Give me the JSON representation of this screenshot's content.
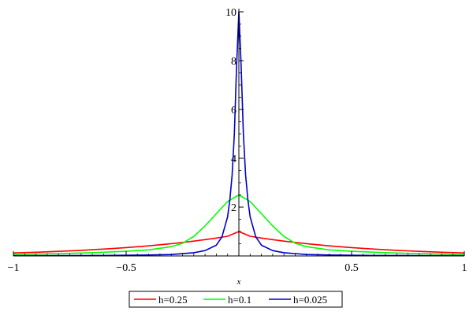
{
  "chart_data": {
    "type": "line",
    "xlabel": "x",
    "ylabel": "",
    "xlim": [
      -1,
      1
    ],
    "ylim": [
      0,
      10
    ],
    "grid": false,
    "legend_position": "bottom",
    "x_ticks": [
      -1,
      -0.5,
      0,
      0.5,
      1
    ],
    "x_tick_labels": [
      "−1",
      "−0.5",
      "",
      "0.5",
      "1"
    ],
    "y_ticks": [
      2,
      4,
      6,
      8,
      10
    ],
    "y_tick_labels": [
      "2",
      "4",
      "6",
      "8",
      "10"
    ],
    "series": [
      {
        "name": "h=0.25",
        "color": "#ff0000",
        "x": [
          -1,
          -0.9,
          -0.8,
          -0.7,
          -0.6,
          -0.5,
          -0.4,
          -0.3,
          -0.25,
          -0.2,
          -0.15,
          -0.1,
          -0.05,
          0,
          0.05,
          0.1,
          0.15,
          0.2,
          0.25,
          0.3,
          0.4,
          0.5,
          0.6,
          0.7,
          0.8,
          0.9,
          1
        ],
        "y": [
          0.125,
          0.152,
          0.186,
          0.229,
          0.281,
          0.34,
          0.413,
          0.503,
          0.553,
          0.607,
          0.667,
          0.733,
          0.806,
          1.0,
          0.806,
          0.733,
          0.667,
          0.607,
          0.553,
          0.503,
          0.413,
          0.34,
          0.281,
          0.229,
          0.186,
          0.152,
          0.125
        ]
      },
      {
        "name": "h=0.1",
        "color": "#00ff00",
        "x": [
          -1,
          -0.9,
          -0.8,
          -0.7,
          -0.6,
          -0.5,
          -0.4,
          -0.3,
          -0.25,
          -0.2,
          -0.15,
          -0.1,
          -0.05,
          0,
          0.05,
          0.1,
          0.15,
          0.2,
          0.25,
          0.3,
          0.4,
          0.5,
          0.6,
          0.7,
          0.8,
          0.9,
          1
        ],
        "y": [
          0.062,
          0.077,
          0.096,
          0.12,
          0.152,
          0.192,
          0.247,
          0.38,
          0.52,
          0.8,
          1.23,
          1.73,
          2.23,
          2.5,
          2.23,
          1.73,
          1.23,
          0.8,
          0.52,
          0.38,
          0.247,
          0.192,
          0.152,
          0.12,
          0.096,
          0.077,
          0.062
        ]
      },
      {
        "name": "h=0.025",
        "color": "#0000cc",
        "x": [
          -1,
          -0.8,
          -0.6,
          -0.4,
          -0.3,
          -0.2,
          -0.15,
          -0.1,
          -0.075,
          -0.05,
          -0.04,
          -0.03,
          -0.02,
          -0.01,
          0,
          0.01,
          0.02,
          0.03,
          0.04,
          0.05,
          0.075,
          0.1,
          0.15,
          0.2,
          0.3,
          0.4,
          0.6,
          0.8,
          1
        ],
        "y": [
          0.012,
          0.016,
          0.02,
          0.04,
          0.06,
          0.13,
          0.22,
          0.44,
          0.78,
          1.6,
          2.3,
          3.3,
          5.0,
          7.8,
          10.0,
          7.8,
          5.0,
          3.3,
          2.3,
          1.6,
          0.78,
          0.44,
          0.22,
          0.13,
          0.06,
          0.04,
          0.02,
          0.016,
          0.012
        ]
      }
    ]
  }
}
